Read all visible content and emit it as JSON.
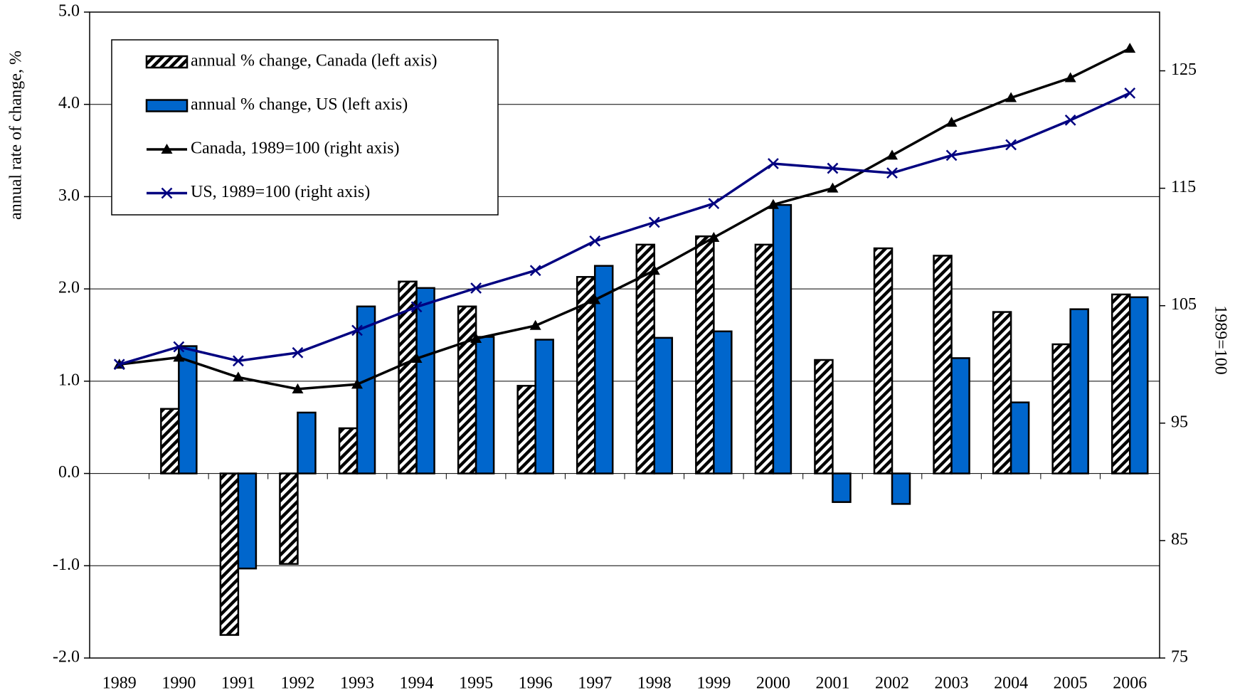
{
  "chart_data": {
    "type": "bar_line",
    "y_label": "annual rate of change, %",
    "y2_label": "1989=100",
    "categories": [
      "1989",
      "1990",
      "1991",
      "1992",
      "1993",
      "1994",
      "1995",
      "1996",
      "1997",
      "1998",
      "1999",
      "2000",
      "2001",
      "2002",
      "2003",
      "2004",
      "2005",
      "2006"
    ],
    "ylim": [
      -2,
      5
    ],
    "yticks": [
      {
        "value": -2,
        "label": "-2.0"
      },
      {
        "value": -1,
        "label": "-1.0"
      },
      {
        "value": 0,
        "label": "0.0"
      },
      {
        "value": 1,
        "label": "1.0"
      },
      {
        "value": 2,
        "label": "2.0"
      },
      {
        "value": 3,
        "label": "3.0"
      },
      {
        "value": 4,
        "label": "4.0"
      },
      {
        "value": 5,
        "label": "5.0"
      }
    ],
    "y2lim": [
      75,
      130
    ],
    "y2ticks": [
      75,
      85,
      95,
      105,
      115,
      125
    ],
    "grid": true,
    "legend": "upper left",
    "series": [
      {
        "name": "annual % change, Canada (left axis)",
        "kind": "bar",
        "pattern": "hatch",
        "color": "#000000",
        "values": [
          null,
          0.7,
          -1.75,
          -0.98,
          0.49,
          2.08,
          1.81,
          0.95,
          2.13,
          2.48,
          2.57,
          2.48,
          1.23,
          2.44,
          2.36,
          1.75,
          1.4,
          1.94
        ]
      },
      {
        "name": "annual % change, US (left axis)",
        "kind": "bar",
        "color": "#0066cc",
        "values": [
          null,
          1.38,
          -1.03,
          0.66,
          1.81,
          2.01,
          1.48,
          1.45,
          2.25,
          1.47,
          1.54,
          2.91,
          -0.31,
          -0.33,
          1.25,
          0.77,
          1.78,
          1.91
        ]
      },
      {
        "name": "Canada, 1989=100 (right axis)",
        "kind": "line",
        "axis": "y2",
        "marker": "triangle",
        "color": "#000000",
        "values": [
          100,
          100.6,
          98.9,
          97.9,
          98.3,
          100.5,
          102.2,
          103.3,
          105.5,
          108.0,
          110.8,
          113.6,
          115.0,
          117.8,
          120.6,
          122.7,
          124.4,
          126.9
        ]
      },
      {
        "name": "US, 1989=100 (right axis)",
        "kind": "line",
        "axis": "y2",
        "marker": "x",
        "color": "#000080",
        "values": [
          100,
          101.5,
          100.3,
          101.0,
          102.9,
          104.9,
          106.5,
          108.0,
          110.5,
          112.1,
          113.7,
          117.1,
          116.7,
          116.3,
          117.8,
          118.7,
          120.8,
          123.1
        ]
      }
    ]
  }
}
